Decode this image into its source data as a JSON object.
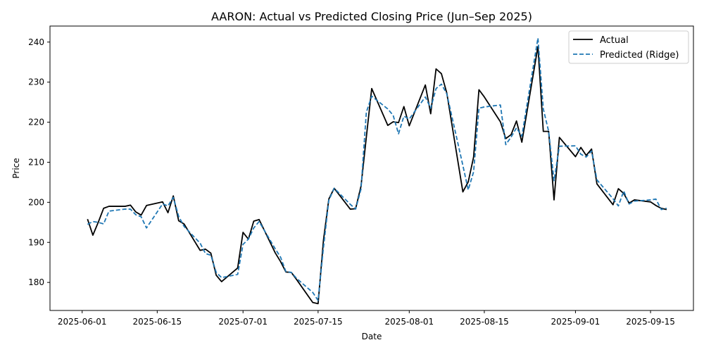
{
  "chart_data": {
    "type": "line",
    "title": "AARON: Actual vs Predicted Closing Price (Jun–Sep 2025)",
    "xlabel": "Date",
    "ylabel": "Price",
    "xlim": [
      "2025-05-26",
      "2025-09-23"
    ],
    "ylim": [
      173,
      244
    ],
    "x_ticks": [
      "2025-06-01",
      "2025-06-15",
      "2025-07-01",
      "2025-07-15",
      "2025-08-01",
      "2025-08-15",
      "2025-09-01",
      "2025-09-15"
    ],
    "y_ticks": [
      180,
      190,
      200,
      210,
      220,
      230,
      240
    ],
    "grid": false,
    "legend_position": "top-right",
    "x": [
      "2025-06-02",
      "2025-06-03",
      "2025-06-04",
      "2025-06-05",
      "2025-06-06",
      "2025-06-09",
      "2025-06-10",
      "2025-06-11",
      "2025-06-12",
      "2025-06-13",
      "2025-06-16",
      "2025-06-17",
      "2025-06-18",
      "2025-06-19",
      "2025-06-20",
      "2025-06-23",
      "2025-06-24",
      "2025-06-25",
      "2025-06-26",
      "2025-06-27",
      "2025-06-30",
      "2025-07-01",
      "2025-07-02",
      "2025-07-03",
      "2025-07-04",
      "2025-07-07",
      "2025-07-08",
      "2025-07-09",
      "2025-07-10",
      "2025-07-11",
      "2025-07-14",
      "2025-07-15",
      "2025-07-16",
      "2025-07-17",
      "2025-07-18",
      "2025-07-21",
      "2025-07-22",
      "2025-07-23",
      "2025-07-24",
      "2025-07-25",
      "2025-07-28",
      "2025-07-29",
      "2025-07-30",
      "2025-07-31",
      "2025-08-01",
      "2025-08-04",
      "2025-08-05",
      "2025-08-06",
      "2025-08-07",
      "2025-08-08",
      "2025-08-11",
      "2025-08-12",
      "2025-08-13",
      "2025-08-14",
      "2025-08-15",
      "2025-08-18",
      "2025-08-19",
      "2025-08-20",
      "2025-08-21",
      "2025-08-22",
      "2025-08-25",
      "2025-08-26",
      "2025-08-27",
      "2025-08-28",
      "2025-08-29",
      "2025-09-01",
      "2025-09-02",
      "2025-09-03",
      "2025-09-04",
      "2025-09-05",
      "2025-09-08",
      "2025-09-09",
      "2025-09-10",
      "2025-09-11",
      "2025-09-12",
      "2025-09-15",
      "2025-09-16",
      "2025-09-17",
      "2025-09-18"
    ],
    "series": [
      {
        "name": "Actual",
        "color": "#000000",
        "dash": "solid",
        "values": [
          195.8,
          191.8,
          195.0,
          198.5,
          199.0,
          199.0,
          199.3,
          197.6,
          196.8,
          199.2,
          200.1,
          197.4,
          201.6,
          195.4,
          194.6,
          188.0,
          188.3,
          187.3,
          181.8,
          180.2,
          183.6,
          192.5,
          190.8,
          195.3,
          195.7,
          187.4,
          185.2,
          182.6,
          182.5,
          180.7,
          175.0,
          174.7,
          190.5,
          200.8,
          203.5,
          198.3,
          198.4,
          204.0,
          216.3,
          228.4,
          219.2,
          220.1,
          219.9,
          223.9,
          219.1,
          229.3,
          222.1,
          233.3,
          232.1,
          227.3,
          202.6,
          205.1,
          211.3,
          228.1,
          226.3,
          220.1,
          215.9,
          216.9,
          220.3,
          215.0,
          238.9,
          217.7,
          217.7,
          200.6,
          216.2,
          211.4,
          213.7,
          211.7,
          213.3,
          204.6,
          199.4,
          203.4,
          202.2,
          199.8,
          200.6,
          200.1,
          199.2,
          198.5,
          198.2
        ]
      },
      {
        "name": "Predicted (Ridge)",
        "color": "#1f77b4",
        "dash": "dashed",
        "values": [
          194.5,
          195.2,
          195.0,
          194.6,
          197.8,
          198.3,
          198.3,
          196.9,
          196.4,
          193.6,
          199.6,
          199.1,
          201.2,
          196.5,
          194.0,
          189.8,
          187.2,
          186.8,
          182.5,
          181.2,
          182.0,
          189.5,
          190.8,
          193.6,
          195.2,
          188.4,
          186.3,
          182.7,
          182.5,
          181.0,
          177.5,
          175.5,
          188.7,
          200.5,
          203.5,
          199.5,
          198.3,
          203.3,
          222.5,
          226.5,
          223.3,
          221.7,
          217.1,
          221.5,
          220.8,
          226.3,
          223.5,
          228.4,
          229.5,
          227.1,
          209.2,
          203.1,
          207.6,
          223.5,
          223.8,
          224.3,
          214.4,
          216.3,
          218.6,
          216.5,
          241.0,
          223.3,
          217.7,
          205.4,
          214.0,
          214.1,
          212.0,
          211.3,
          212.8,
          205.6,
          200.9,
          199.1,
          202.8,
          199.6,
          200.3,
          200.6,
          200.8,
          198.2,
          198.5
        ]
      }
    ]
  }
}
